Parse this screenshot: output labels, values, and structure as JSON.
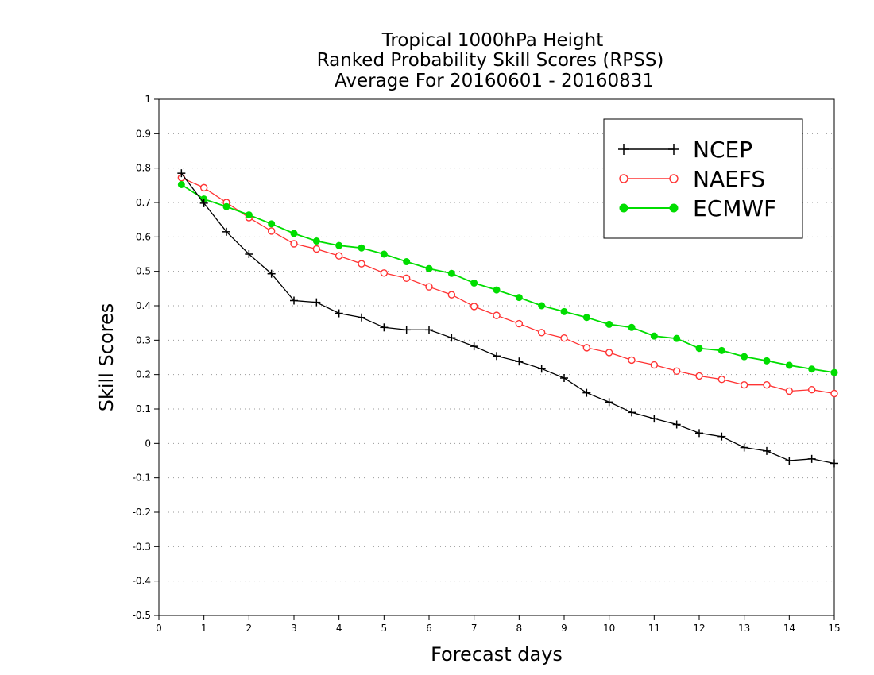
{
  "chart_data": {
    "type": "line",
    "title": [
      "Tropical 1000hPa Height",
      "Ranked Probability Skill Scores (RPSS)",
      "Average For 20160601 - 20160831"
    ],
    "xlabel": "Forecast days",
    "ylabel": "Skill Scores",
    "xlim": [
      0,
      15
    ],
    "ylim": [
      -0.5,
      1
    ],
    "xticks": [
      0,
      1,
      2,
      3,
      4,
      5,
      6,
      7,
      8,
      9,
      10,
      11,
      12,
      13,
      14,
      15
    ],
    "xtick_labels": [
      "0",
      "1",
      "2",
      "3",
      "4",
      "5",
      "6",
      "7",
      "8",
      "9",
      "10",
      "11",
      "12",
      "13",
      "14",
      "15"
    ],
    "yticks": [
      -0.5,
      -0.4,
      -0.3,
      -0.2,
      -0.1,
      0,
      0.1,
      0.2,
      0.3,
      0.4,
      0.5,
      0.6,
      0.7,
      0.8,
      0.9,
      1
    ],
    "ytick_labels": [
      "-0.5",
      "-0.4",
      "-0.3",
      "-0.2",
      "-0.1",
      "0",
      "0.1",
      "0.2",
      "0.3",
      "0.4",
      "0.5",
      "0.6",
      "0.7",
      "0.8",
      "0.9",
      "1"
    ],
    "grid": "horizontal dotted",
    "legend_position": "top-right",
    "x": [
      0.5,
      1,
      1.5,
      2,
      2.5,
      3,
      3.5,
      4,
      4.5,
      5,
      5.5,
      6,
      6.5,
      7,
      7.5,
      8,
      8.5,
      9,
      9.5,
      10,
      10.5,
      11,
      11.5,
      12,
      12.5,
      13,
      13.5,
      14,
      14.5,
      15
    ],
    "series": [
      {
        "name": "NCEP",
        "color": "#000000",
        "marker": "plus",
        "values": [
          0.785,
          0.698,
          0.615,
          0.55,
          0.493,
          0.415,
          0.41,
          0.378,
          0.366,
          0.337,
          0.33,
          0.33,
          0.307,
          0.282,
          0.254,
          0.238,
          0.217,
          0.19,
          0.147,
          0.12,
          0.09,
          0.072,
          0.055,
          0.03,
          0.02,
          -0.012,
          -0.022,
          -0.05,
          -0.045,
          -0.058
        ]
      },
      {
        "name": "NAEFS",
        "color": "#ff3333",
        "marker": "open-circle",
        "values": [
          0.772,
          0.743,
          0.7,
          0.656,
          0.617,
          0.58,
          0.565,
          0.545,
          0.522,
          0.495,
          0.48,
          0.455,
          0.432,
          0.398,
          0.372,
          0.348,
          0.322,
          0.306,
          0.278,
          0.264,
          0.242,
          0.228,
          0.21,
          0.196,
          0.186,
          0.17,
          0.17,
          0.152,
          0.156,
          0.145
        ]
      },
      {
        "name": "ECMWF",
        "color": "#00dd00",
        "marker": "filled-circle",
        "values": [
          0.752,
          0.71,
          0.688,
          0.664,
          0.638,
          0.61,
          0.588,
          0.575,
          0.568,
          0.55,
          0.528,
          0.508,
          0.494,
          0.466,
          0.446,
          0.424,
          0.4,
          0.383,
          0.366,
          0.346,
          0.337,
          0.312,
          0.305,
          0.276,
          0.27,
          0.252,
          0.24,
          0.227,
          0.216,
          0.206
        ]
      }
    ]
  }
}
